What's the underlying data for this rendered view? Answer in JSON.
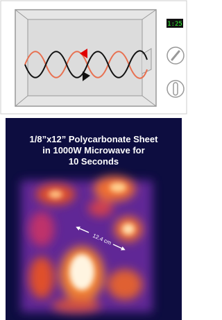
{
  "microwave": {
    "display": "1:25"
  },
  "thermal_image": {
    "title_lines": [
      "1/8”x12” Polycarbonate Sheet",
      "in 1000W Microwave for",
      "10 Seconds"
    ],
    "annotation": "12.4 cm"
  }
}
